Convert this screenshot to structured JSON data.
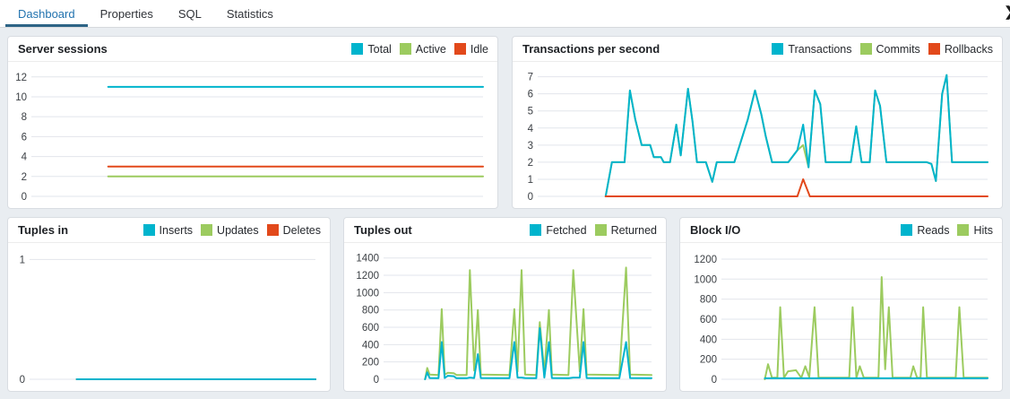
{
  "tabs": {
    "items": [
      {
        "label": "Dashboard",
        "active": true
      },
      {
        "label": "Properties",
        "active": false
      },
      {
        "label": "SQL",
        "active": false
      },
      {
        "label": "Statistics",
        "active": false
      }
    ],
    "scroll_icon": "❯"
  },
  "colors": {
    "teal": "#00b4cd",
    "green": "#9ccb5f",
    "red": "#e2491b",
    "tab_active_text": "#2273af",
    "tab_active_line": "#2d6485",
    "gridline": "#e2e5ec",
    "tick_text": "#3c4045",
    "content_bg": "#e9edf1"
  },
  "chart_data": [
    {
      "id": "server-sessions",
      "type": "line",
      "title": "Server sessions",
      "xlabel": "",
      "ylabel": "",
      "grid": true,
      "legend_position": "top-right",
      "label_width": 26,
      "yticks": [
        0,
        2,
        4,
        6,
        8,
        10,
        12
      ],
      "ylim": [
        0,
        12.7
      ],
      "legend": [
        {
          "label": "Total",
          "color": "teal"
        },
        {
          "label": "Active",
          "color": "green"
        },
        {
          "label": "Idle",
          "color": "red"
        }
      ],
      "series": [
        {
          "name": "Total",
          "color": "teal",
          "points": [
            [
              0.17,
              11
            ],
            [
              1,
              11
            ]
          ]
        },
        {
          "name": "Active",
          "color": "green",
          "points": [
            [
              0.17,
              2
            ],
            [
              1,
              2
            ]
          ]
        },
        {
          "name": "Idle",
          "color": "red",
          "points": [
            [
              0.17,
              3
            ],
            [
              1,
              3
            ]
          ]
        }
      ]
    },
    {
      "id": "transactions-per-second",
      "type": "line",
      "title": "Transactions per second",
      "xlabel": "",
      "ylabel": "",
      "grid": true,
      "legend_position": "top-right",
      "label_width": 28,
      "yticks": [
        0,
        1,
        2,
        3,
        4,
        5,
        6,
        7
      ],
      "ylim": [
        0,
        7.4
      ],
      "legend": [
        {
          "label": "Transactions",
          "color": "teal"
        },
        {
          "label": "Commits",
          "color": "green"
        },
        {
          "label": "Rollbacks",
          "color": "red"
        }
      ],
      "series": [
        {
          "name": "Commits",
          "color": "green",
          "points": [
            [
              0.151,
              0
            ],
            [
              0.165,
              2
            ],
            [
              0.193,
              2
            ],
            [
              0.205,
              6.2
            ],
            [
              0.217,
              4.5
            ],
            [
              0.231,
              3
            ],
            [
              0.25,
              3
            ],
            [
              0.258,
              2.3
            ],
            [
              0.274,
              2.3
            ],
            [
              0.28,
              2
            ],
            [
              0.294,
              2
            ],
            [
              0.308,
              4.2
            ],
            [
              0.318,
              2.4
            ],
            [
              0.334,
              6.3
            ],
            [
              0.344,
              4.4
            ],
            [
              0.354,
              2
            ],
            [
              0.374,
              2
            ],
            [
              0.388,
              0.85
            ],
            [
              0.398,
              2
            ],
            [
              0.437,
              2
            ],
            [
              0.467,
              4.5
            ],
            [
              0.483,
              6.2
            ],
            [
              0.497,
              4.8
            ],
            [
              0.507,
              3.5
            ],
            [
              0.521,
              2
            ],
            [
              0.557,
              2
            ],
            [
              0.577,
              2.7
            ],
            [
              0.59,
              3
            ],
            [
              0.602,
              1.7
            ],
            [
              0.616,
              6.2
            ],
            [
              0.628,
              5.4
            ],
            [
              0.64,
              2
            ],
            [
              0.696,
              2
            ],
            [
              0.708,
              4.1
            ],
            [
              0.72,
              2
            ],
            [
              0.738,
              2
            ],
            [
              0.75,
              6.2
            ],
            [
              0.761,
              5.3
            ],
            [
              0.775,
              2
            ],
            [
              0.865,
              2
            ],
            [
              0.875,
              1.9
            ],
            [
              0.885,
              0.9
            ],
            [
              0.899,
              6
            ],
            [
              0.909,
              7.1
            ],
            [
              0.921,
              2
            ],
            [
              1,
              2
            ]
          ]
        },
        {
          "name": "Transactions",
          "color": "teal",
          "points": [
            [
              0.151,
              0
            ],
            [
              0.165,
              2
            ],
            [
              0.193,
              2
            ],
            [
              0.205,
              6.2
            ],
            [
              0.217,
              4.5
            ],
            [
              0.231,
              3
            ],
            [
              0.25,
              3
            ],
            [
              0.258,
              2.3
            ],
            [
              0.274,
              2.3
            ],
            [
              0.28,
              2
            ],
            [
              0.294,
              2
            ],
            [
              0.308,
              4.2
            ],
            [
              0.318,
              2.4
            ],
            [
              0.334,
              6.3
            ],
            [
              0.344,
              4.4
            ],
            [
              0.354,
              2
            ],
            [
              0.374,
              2
            ],
            [
              0.388,
              0.85
            ],
            [
              0.398,
              2
            ],
            [
              0.437,
              2
            ],
            [
              0.467,
              4.5
            ],
            [
              0.483,
              6.2
            ],
            [
              0.497,
              4.8
            ],
            [
              0.507,
              3.5
            ],
            [
              0.521,
              2
            ],
            [
              0.557,
              2
            ],
            [
              0.577,
              2.7
            ],
            [
              0.59,
              4.2
            ],
            [
              0.602,
              1.7
            ],
            [
              0.616,
              6.2
            ],
            [
              0.628,
              5.4
            ],
            [
              0.64,
              2
            ],
            [
              0.696,
              2
            ],
            [
              0.708,
              4.1
            ],
            [
              0.72,
              2
            ],
            [
              0.738,
              2
            ],
            [
              0.75,
              6.2
            ],
            [
              0.761,
              5.3
            ],
            [
              0.775,
              2
            ],
            [
              0.865,
              2
            ],
            [
              0.875,
              1.9
            ],
            [
              0.885,
              0.9
            ],
            [
              0.899,
              6
            ],
            [
              0.909,
              7.1
            ],
            [
              0.921,
              2
            ],
            [
              1,
              2
            ]
          ]
        },
        {
          "name": "Rollbacks",
          "color": "red",
          "points": [
            [
              0.151,
              0
            ],
            [
              0.577,
              0
            ],
            [
              0.59,
              1
            ],
            [
              0.605,
              0
            ],
            [
              1,
              0
            ]
          ]
        }
      ]
    },
    {
      "id": "tuples-in",
      "type": "line",
      "title": "Tuples in",
      "xlabel": "",
      "ylabel": "",
      "grid": true,
      "legend_position": "top-right",
      "label_width": 24,
      "yticks": [
        0,
        1
      ],
      "ylim": [
        0,
        1.07
      ],
      "legend": [
        {
          "label": "Inserts",
          "color": "teal"
        },
        {
          "label": "Updates",
          "color": "green"
        },
        {
          "label": "Deletes",
          "color": "red"
        }
      ],
      "series": [
        {
          "name": "Updates",
          "color": "green",
          "points": [
            [
              0.165,
              0
            ],
            [
              1,
              0
            ]
          ]
        },
        {
          "name": "Deletes",
          "color": "red",
          "points": [
            [
              0.165,
              0
            ],
            [
              1,
              0
            ]
          ]
        },
        {
          "name": "Inserts",
          "color": "teal",
          "points": [
            [
              0.165,
              0
            ],
            [
              1,
              0
            ]
          ]
        }
      ]
    },
    {
      "id": "tuples-out",
      "type": "line",
      "title": "Tuples out",
      "xlabel": "",
      "ylabel": "",
      "grid": true,
      "legend_position": "top-right",
      "label_width": 44,
      "yticks": [
        0,
        200,
        400,
        600,
        800,
        1000,
        1200,
        1400
      ],
      "ylim": [
        0,
        1480
      ],
      "legend": [
        {
          "label": "Fetched",
          "color": "teal"
        },
        {
          "label": "Returned",
          "color": "green"
        }
      ],
      "series": [
        {
          "name": "Returned",
          "color": "green",
          "points": [
            [
              0.155,
              0
            ],
            [
              0.163,
              130
            ],
            [
              0.172,
              55
            ],
            [
              0.205,
              50
            ],
            [
              0.217,
              810
            ],
            [
              0.228,
              55
            ],
            [
              0.24,
              75
            ],
            [
              0.262,
              70
            ],
            [
              0.272,
              50
            ],
            [
              0.31,
              50
            ],
            [
              0.322,
              1260
            ],
            [
              0.338,
              100
            ],
            [
              0.352,
              800
            ],
            [
              0.363,
              55
            ],
            [
              0.47,
              50
            ],
            [
              0.488,
              810
            ],
            [
              0.5,
              90
            ],
            [
              0.515,
              1260
            ],
            [
              0.528,
              55
            ],
            [
              0.57,
              50
            ],
            [
              0.583,
              660
            ],
            [
              0.6,
              80
            ],
            [
              0.617,
              800
            ],
            [
              0.628,
              55
            ],
            [
              0.69,
              50
            ],
            [
              0.708,
              1260
            ],
            [
              0.732,
              90
            ],
            [
              0.746,
              810
            ],
            [
              0.758,
              55
            ],
            [
              0.88,
              50
            ],
            [
              0.905,
              1290
            ],
            [
              0.92,
              55
            ],
            [
              1,
              50
            ]
          ]
        },
        {
          "name": "Fetched",
          "color": "teal",
          "points": [
            [
              0.155,
              0
            ],
            [
              0.163,
              80
            ],
            [
              0.172,
              15
            ],
            [
              0.205,
              12
            ],
            [
              0.217,
              430
            ],
            [
              0.228,
              15
            ],
            [
              0.24,
              40
            ],
            [
              0.262,
              35
            ],
            [
              0.272,
              12
            ],
            [
              0.31,
              12
            ],
            [
              0.322,
              20
            ],
            [
              0.338,
              15
            ],
            [
              0.352,
              290
            ],
            [
              0.363,
              15
            ],
            [
              0.47,
              12
            ],
            [
              0.488,
              430
            ],
            [
              0.5,
              20
            ],
            [
              0.515,
              20
            ],
            [
              0.528,
              15
            ],
            [
              0.57,
              12
            ],
            [
              0.583,
              590
            ],
            [
              0.6,
              20
            ],
            [
              0.617,
              430
            ],
            [
              0.628,
              15
            ],
            [
              0.69,
              12
            ],
            [
              0.708,
              20
            ],
            [
              0.732,
              20
            ],
            [
              0.746,
              430
            ],
            [
              0.758,
              15
            ],
            [
              0.88,
              12
            ],
            [
              0.905,
              430
            ],
            [
              0.92,
              15
            ],
            [
              1,
              12
            ]
          ]
        }
      ]
    },
    {
      "id": "block-io",
      "type": "line",
      "title": "Block I/O",
      "xlabel": "",
      "ylabel": "",
      "grid": true,
      "legend_position": "top-right",
      "label_width": 46,
      "yticks": [
        0,
        200,
        400,
        600,
        800,
        1000,
        1200
      ],
      "ylim": [
        0,
        1280
      ],
      "legend": [
        {
          "label": "Reads",
          "color": "teal"
        },
        {
          "label": "Hits",
          "color": "green"
        }
      ],
      "series": [
        {
          "name": "Hits",
          "color": "green",
          "points": [
            [
              0.163,
              0
            ],
            [
              0.175,
              150
            ],
            [
              0.19,
              15
            ],
            [
              0.21,
              15
            ],
            [
              0.221,
              720
            ],
            [
              0.235,
              15
            ],
            [
              0.25,
              80
            ],
            [
              0.28,
              90
            ],
            [
              0.3,
              15
            ],
            [
              0.315,
              130
            ],
            [
              0.33,
              20
            ],
            [
              0.35,
              720
            ],
            [
              0.365,
              15
            ],
            [
              0.48,
              15
            ],
            [
              0.493,
              720
            ],
            [
              0.507,
              15
            ],
            [
              0.52,
              130
            ],
            [
              0.535,
              15
            ],
            [
              0.59,
              15
            ],
            [
              0.602,
              1020
            ],
            [
              0.615,
              100
            ],
            [
              0.629,
              720
            ],
            [
              0.643,
              15
            ],
            [
              0.71,
              15
            ],
            [
              0.721,
              130
            ],
            [
              0.735,
              15
            ],
            [
              0.748,
              15
            ],
            [
              0.758,
              720
            ],
            [
              0.772,
              15
            ],
            [
              0.88,
              15
            ],
            [
              0.894,
              720
            ],
            [
              0.91,
              15
            ],
            [
              1,
              15
            ]
          ]
        },
        {
          "name": "Reads",
          "color": "teal",
          "points": [
            [
              0.163,
              10
            ],
            [
              1,
              10
            ]
          ]
        }
      ]
    }
  ]
}
